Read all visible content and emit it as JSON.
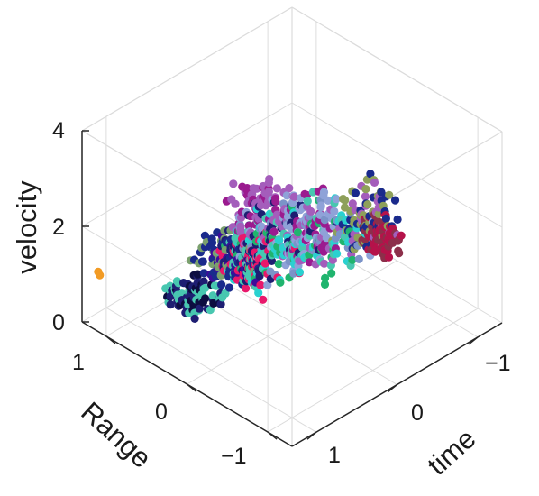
{
  "chart_data": {
    "type": "scatter",
    "projection": "3d",
    "title": "",
    "xlabel": "time",
    "ylabel": "Range",
    "zlabel": "velocity",
    "xlim": [
      -1.3,
      1.3
    ],
    "ylim": [
      -1.3,
      1.3
    ],
    "zlim": [
      0,
      4
    ],
    "grid": true,
    "x_ticks": [
      -1,
      0,
      1
    ],
    "x_tick_labels": [
      "−1",
      "0",
      "1"
    ],
    "y_ticks": [
      -1,
      0,
      1
    ],
    "y_tick_labels": [
      "−1",
      "0",
      "1"
    ],
    "z_ticks": [
      0,
      2,
      4
    ],
    "z_tick_labels": [
      "0",
      "2",
      "4"
    ],
    "point_colors": [
      "#9b1b8f",
      "#a45dbb",
      "#8fa2d8",
      "#7b93c8",
      "#1e1e72",
      "#1a2a8c",
      "#3e0c9a",
      "#2ad1d0",
      "#48c7b0",
      "#20b46e",
      "#7aa06d",
      "#8ea05a",
      "#e8186b",
      "#b5124a",
      "#8c2f4a",
      "#f29b24",
      "#0d0d40"
    ],
    "point_count": 900
  }
}
